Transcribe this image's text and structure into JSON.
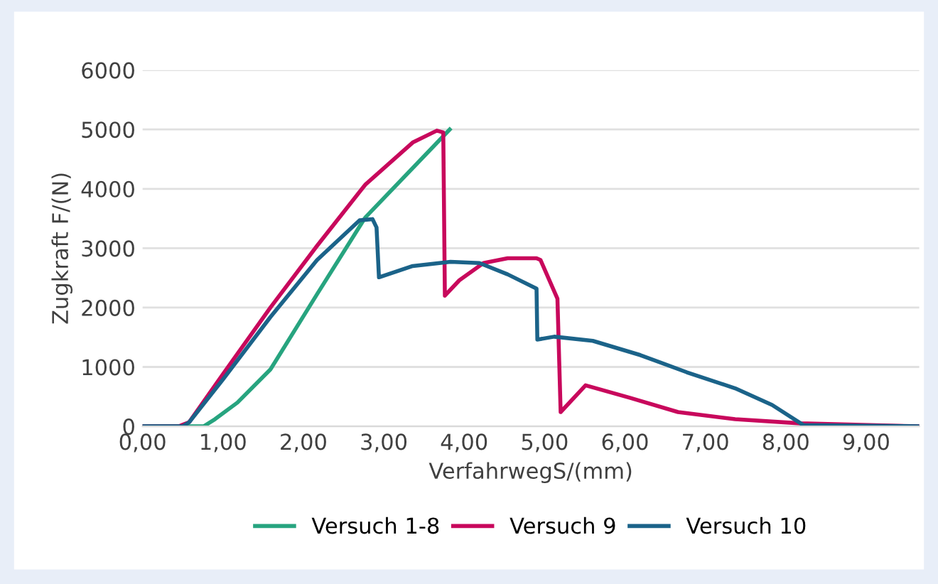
{
  "chart_data": {
    "type": "line",
    "xlabel": "VerfahrwegS/(mm)",
    "ylabel": "Zugkraft F/(N)",
    "xlim": [
      0,
      9.66
    ],
    "ylim": [
      0,
      6000
    ],
    "xticks": [
      {
        "value": 0,
        "label": "0,00"
      },
      {
        "value": 1,
        "label": "1,00"
      },
      {
        "value": 2,
        "label": "2,00"
      },
      {
        "value": 3,
        "label": "3,00"
      },
      {
        "value": 4,
        "label": "4,00"
      },
      {
        "value": 5,
        "label": "5,00"
      },
      {
        "value": 6,
        "label": "6,00"
      },
      {
        "value": 7,
        "label": "7,00"
      },
      {
        "value": 8,
        "label": "8,00"
      },
      {
        "value": 9,
        "label": "9,00"
      }
    ],
    "yticks": [
      0,
      1000,
      2000,
      3000,
      4000,
      5000,
      6000
    ],
    "grid": "y",
    "legend": "bottom",
    "marker": "none",
    "line_style": "solid",
    "series": [
      {
        "name": "Versuch 1-8",
        "color": "#27a47f",
        "x": [
          0,
          0.7,
          0.76,
          0.9,
          1.18,
          1.59,
          2.17,
          2.77,
          3.82
        ],
        "values": [
          0,
          0,
          0,
          120,
          400,
          957,
          2225,
          3517,
          5000
        ]
      },
      {
        "name": "Versuch 9",
        "color": "#c8085c",
        "x": [
          0,
          0.45,
          0.58,
          1.0,
          1.59,
          2.17,
          2.77,
          3.36,
          3.66,
          3.74,
          3.76,
          3.94,
          4.24,
          4.54,
          4.9,
          4.95,
          5.16,
          5.2,
          5.51,
          6.06,
          6.66,
          7.37,
          8.18,
          9.66
        ],
        "values": [
          0,
          0,
          70,
          880,
          2000,
          3040,
          4070,
          4780,
          4980,
          4950,
          2200,
          2460,
          2750,
          2830,
          2830,
          2800,
          2150,
          240,
          690,
          480,
          240,
          120,
          50,
          0
        ]
      },
      {
        "name": "Versuch 10",
        "color": "#1b6389",
        "x": [
          0,
          0.5,
          0.58,
          1.0,
          1.59,
          2.17,
          2.47,
          2.7,
          2.86,
          2.91,
          2.94,
          3.36,
          3.83,
          4.19,
          4.54,
          4.9,
          4.91,
          5.12,
          5.6,
          6.19,
          6.77,
          7.37,
          7.83,
          8.22,
          9.66
        ],
        "values": [
          0,
          0,
          70,
          790,
          1840,
          2800,
          3180,
          3470,
          3490,
          3350,
          2510,
          2700,
          2770,
          2750,
          2560,
          2320,
          1460,
          1510,
          1440,
          1200,
          910,
          640,
          360,
          20,
          0
        ]
      }
    ]
  }
}
